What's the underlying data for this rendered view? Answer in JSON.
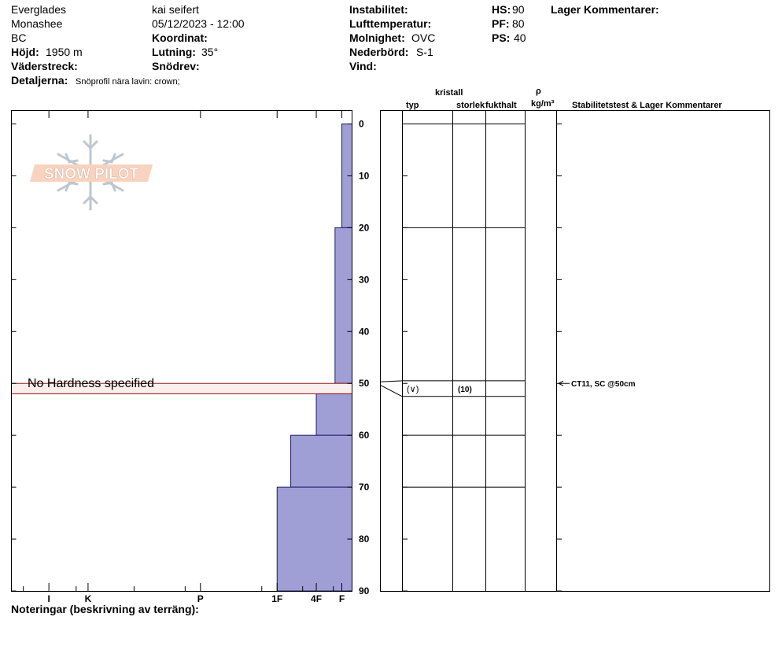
{
  "header": {
    "location": "Everglades",
    "range": "Monashee",
    "region": "BC",
    "elevation_label": "Höjd:",
    "elevation_value": "1950 m",
    "aspect_label": "Väderstreck:",
    "details_label": "Detaljerna:",
    "details_value": "Snöprofil nära lavin: crown;",
    "observer": "kai seifert",
    "datetime": "05/12/2023 - 12:00",
    "coord_label": "Koordinat:",
    "slope_label": "Lutning:",
    "slope_value": "35°",
    "drift_label": "Snödrev:",
    "instability_label": "Instabilitet:",
    "airtemp_label": "Lufttemperatur:",
    "cloud_label": "Molnighet:",
    "cloud_value": "OVC",
    "precip_label": "Nederbörd:",
    "precip_value": "S-1",
    "wind_label": "Vind:",
    "hs_label": "HS:",
    "hs_value": "90",
    "pf_label": "PF:",
    "pf_value": "80",
    "ps_label": "PS:",
    "ps_value": "40",
    "layer_comments_label": "Lager Kommentarer:"
  },
  "columns": {
    "crystal_label": "kristall",
    "type_label": "typ",
    "size_label": "storlek",
    "moisture_label": "fukthalt",
    "density_symbol": "ρ",
    "density_unit": "kg/m³",
    "stability_label": "Stabilitetstest & Lager Kommentarer"
  },
  "logo_text": "SNOW PILOT",
  "no_hardness_text": "No Hardness specified",
  "notes_label": "Noteringar (beskrivning av terräng):",
  "chart_data": {
    "type": "snow-profile",
    "depth_ticks": [
      0,
      10,
      20,
      30,
      40,
      50,
      60,
      70,
      80,
      90
    ],
    "depth_range": [
      0,
      90
    ],
    "hardness_ticks": [
      "I",
      "K",
      "P",
      "1F",
      "4F",
      "F"
    ],
    "hardness_tick_frac": [
      0.11,
      0.225,
      0.555,
      0.78,
      0.895,
      0.97
    ],
    "hardness_minor_frac": [
      0.035,
      0.19,
      0.36,
      0.51,
      0.735,
      0.855,
      0.945
    ],
    "hardness_layers": [
      {
        "top": 0,
        "bottom": 20,
        "left_frac": 0.97
      },
      {
        "top": 20,
        "bottom": 50,
        "left_frac": 0.95
      },
      {
        "top": 52,
        "bottom": 60,
        "left_frac": 0.895
      },
      {
        "top": 60,
        "bottom": 70,
        "left_frac": 0.82
      },
      {
        "top": 70,
        "bottom": 90,
        "left_frac": 0.78
      }
    ],
    "no_hardness_layer": {
      "top": 50,
      "bottom": 52
    },
    "layer_boundaries": [
      0,
      20,
      49.5,
      52.5,
      60,
      70
    ],
    "crystals": [
      {
        "depth": 51,
        "type": "(∨)",
        "size": "(10)"
      }
    ],
    "stability_tests": [
      {
        "depth": 50,
        "text": "CT11, SC @50cm"
      }
    ],
    "fill_color": "#9f9fd6",
    "no_hardness_color": "#fdeeee"
  }
}
